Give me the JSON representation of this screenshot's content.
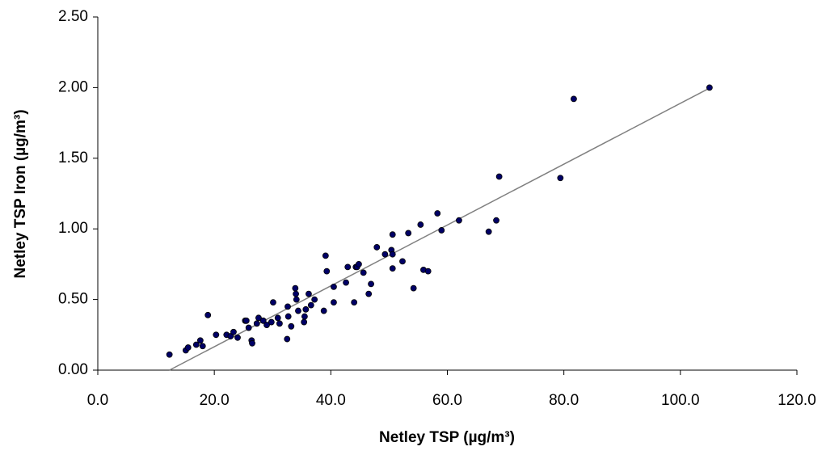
{
  "chart_data": {
    "type": "scatter",
    "xlabel": "Netley TSP (µg/m³)",
    "ylabel": "Netley TSP Iron (µg/m³)",
    "xlim": [
      0,
      120
    ],
    "ylim": [
      0,
      2.5
    ],
    "xticks": [
      {
        "value": 0,
        "label": "0.0"
      },
      {
        "value": 20,
        "label": "20.0"
      },
      {
        "value": 40,
        "label": "40.0"
      },
      {
        "value": 60,
        "label": "60.0"
      },
      {
        "value": 80,
        "label": "80.0"
      },
      {
        "value": 100,
        "label": "100.0"
      },
      {
        "value": 120,
        "label": "120.0"
      }
    ],
    "yticks": [
      {
        "value": 0,
        "label": "0.00"
      },
      {
        "value": 0.5,
        "label": "0.50"
      },
      {
        "value": 1,
        "label": "1.00"
      },
      {
        "value": 1.5,
        "label": "1.50"
      },
      {
        "value": 2,
        "label": "2.00"
      },
      {
        "value": 2.5,
        "label": "2.50"
      }
    ],
    "grid": false,
    "series": [
      {
        "color": "#000066",
        "x": [
          12.3,
          15.1,
          15.5,
          16.9,
          17.6,
          18.0,
          18.9,
          20.3,
          22.1,
          22.8,
          23.3,
          24.0,
          25.3,
          25.5,
          25.9,
          26.4,
          26.5,
          27.3,
          27.6,
          28.4,
          29.0,
          29.8,
          30.1,
          30.9,
          31.2,
          32.5,
          32.7,
          32.6,
          33.2,
          33.9,
          34.0,
          34.1,
          34.4,
          35.4,
          35.5,
          35.7,
          36.2,
          36.6,
          37.2,
          38.8,
          39.1,
          39.3,
          40.5,
          40.5,
          42.6,
          42.9,
          44.0,
          44.3,
          44.5,
          44.8,
          45.6,
          46.5,
          46.9,
          47.9,
          49.3,
          50.4,
          50.6,
          50.6,
          50.6,
          52.3,
          53.3,
          54.2,
          55.4,
          55.9,
          56.7,
          58.3,
          59.0,
          62.0,
          67.1,
          68.4,
          68.9,
          79.4,
          81.7,
          105.0
        ],
        "values": [
          0.11,
          0.14,
          0.16,
          0.18,
          0.21,
          0.17,
          0.39,
          0.25,
          0.25,
          0.24,
          0.27,
          0.23,
          0.35,
          0.35,
          0.3,
          0.21,
          0.19,
          0.33,
          0.37,
          0.35,
          0.32,
          0.34,
          0.48,
          0.37,
          0.33,
          0.22,
          0.38,
          0.45,
          0.31,
          0.58,
          0.54,
          0.5,
          0.42,
          0.34,
          0.38,
          0.43,
          0.54,
          0.46,
          0.5,
          0.42,
          0.81,
          0.7,
          0.59,
          0.48,
          0.62,
          0.73,
          0.48,
          0.73,
          0.73,
          0.75,
          0.69,
          0.54,
          0.61,
          0.87,
          0.82,
          0.85,
          0.96,
          0.82,
          0.72,
          0.77,
          0.97,
          0.58,
          1.03,
          0.71,
          0.7,
          1.11,
          0.99,
          1.06,
          0.98,
          1.06,
          1.37,
          1.36,
          1.92,
          2.0
        ]
      }
    ],
    "trendline": {
      "color": "#808080",
      "x": [
        12.3,
        104.7
      ],
      "values": [
        0.0,
        1.99
      ]
    }
  }
}
